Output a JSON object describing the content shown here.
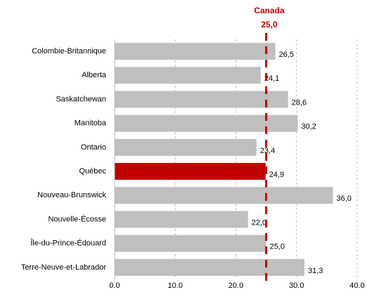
{
  "chart_data": {
    "type": "hbar",
    "categories": [
      "Colombie-Britannique",
      "Alberta",
      "Saskatchewan",
      "Manitoba",
      "Ontario",
      "Québec",
      "Nouveau-Brunswick",
      "Nouvelle-Écosse",
      "Île-du-Prince-Édouard",
      "Terre-Neuve-et-Labrador"
    ],
    "values": [
      26.5,
      24.1,
      28.6,
      30.2,
      23.4,
      24.9,
      36.0,
      22.0,
      25.0,
      31.3
    ],
    "value_labels": [
      "26,5",
      "24,1",
      "28,6",
      "30,2",
      "23,4",
      "24,9",
      "36,0",
      "22,0",
      "25,0",
      "31,3"
    ],
    "colors": [
      "#bfbfbf",
      "#bfbfbf",
      "#bfbfbf",
      "#bfbfbf",
      "#bfbfbf",
      "#c00000",
      "#bfbfbf",
      "#bfbfbf",
      "#bfbfbf",
      "#bfbfbf"
    ],
    "xlim": [
      0,
      40
    ],
    "xticks": [
      {
        "value": 0,
        "label": "0.0"
      },
      {
        "value": 10,
        "label": "10.0"
      },
      {
        "value": 20,
        "label": "20.0"
      },
      {
        "value": 30,
        "label": "30.0"
      },
      {
        "value": 40,
        "label": "40.0"
      }
    ],
    "grid": true,
    "reference_line": {
      "value": 25.0,
      "label": "Canada",
      "value_label": "25,0",
      "color": "#c00000"
    }
  }
}
